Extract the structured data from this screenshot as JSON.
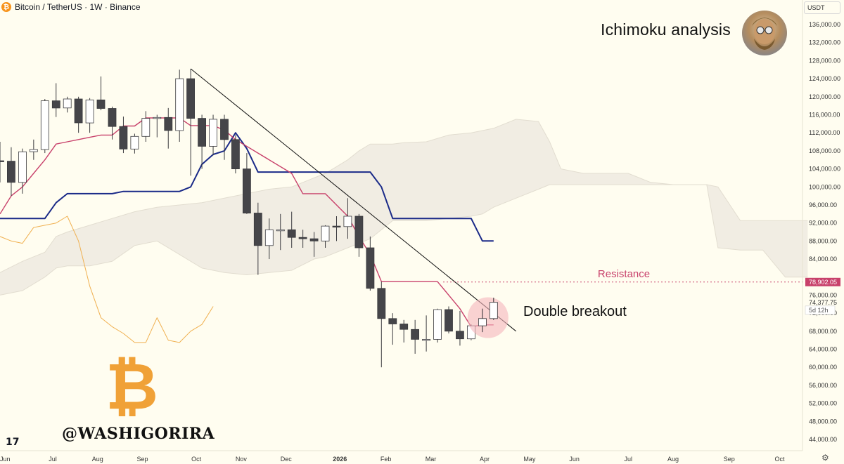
{
  "header": {
    "symbol_icon": "₿",
    "symbol": "Bitcoin / TetherUS · 1W · Binance",
    "currency": "USDT"
  },
  "headline": "Ichimoku analysis",
  "watermark": "@WASHIGORIRA",
  "logo_glyph": "₿",
  "tv_logo": "17",
  "gear_icon": "⚙",
  "colors": {
    "background": "#fffdf0",
    "candle_down": "#454549",
    "candle_up": "#ffffff",
    "tenkan": "#c8416b",
    "kijun": "#1a2a88",
    "chikou": "#f0b050",
    "cloud": "#eeeae0",
    "resistance": "#c8416b",
    "trendline": "#111111",
    "highlight": "#f5b5bc",
    "bitcoin_logo": "#f0a137"
  },
  "chart_data": {
    "type": "candlestick",
    "title": "Bitcoin / TetherUS · 1W · Binance",
    "ylim": [
      42000,
      138000
    ],
    "y_ticks": [
      44000,
      48000,
      52000,
      56000,
      60000,
      64000,
      68000,
      72000,
      76000,
      80000,
      84000,
      88000,
      92000,
      96000,
      100000,
      104000,
      108000,
      112000,
      116000,
      120000,
      124000,
      128000,
      132000,
      136000
    ],
    "y_tick_labels": [
      "44,000.00",
      "48,000.00",
      "52,000.00",
      "56,000.00",
      "60,000.00",
      "64,000.00",
      "68,000.00",
      "72,000.00",
      "76,000.00",
      "80,000.00",
      "84,000.00",
      "88,000.00",
      "92,000.00",
      "96,000.00",
      "100,000.00",
      "104,000.00",
      "108,000.00",
      "112,000.00",
      "116,000.00",
      "120,000.00",
      "124,000.00",
      "128,000.00",
      "132,000.00",
      "136,000.00"
    ],
    "x_ticks": [
      {
        "label": "Jun",
        "week": 0
      },
      {
        "label": "Jul",
        "week": 4.7
      },
      {
        "label": "Aug",
        "week": 8.7
      },
      {
        "label": "Sep",
        "week": 12.7
      },
      {
        "label": "Oct",
        "week": 17.5
      },
      {
        "label": "Nov",
        "week": 21.5
      },
      {
        "label": "Dec",
        "week": 25.5
      },
      {
        "label": "2026",
        "week": 30.3
      },
      {
        "label": "Feb",
        "week": 34.4
      },
      {
        "label": "Mar",
        "week": 38.4
      },
      {
        "label": "Apr",
        "week": 43.2
      },
      {
        "label": "May",
        "week": 47.2
      },
      {
        "label": "Jun",
        "week": 51.2
      },
      {
        "label": "Jul",
        "week": 56
      },
      {
        "label": "Aug",
        "week": 60
      },
      {
        "label": "Sep",
        "week": 65
      },
      {
        "label": "Oct",
        "week": 69.5
      }
    ],
    "candles": [
      {
        "week": 0,
        "o": 105800,
        "h": 110000,
        "l": 101000,
        "c": 105700
      },
      {
        "week": 1,
        "o": 105700,
        "h": 108800,
        "l": 98000,
        "c": 101000
      },
      {
        "week": 2,
        "o": 101000,
        "h": 108500,
        "l": 98500,
        "c": 107800
      },
      {
        "week": 3,
        "o": 107800,
        "h": 110500,
        "l": 106000,
        "c": 108300
      },
      {
        "week": 4,
        "o": 108300,
        "h": 119500,
        "l": 107500,
        "c": 119100
      },
      {
        "week": 5,
        "o": 119100,
        "h": 123000,
        "l": 115500,
        "c": 117500
      },
      {
        "week": 6,
        "o": 117500,
        "h": 120000,
        "l": 116500,
        "c": 119500
      },
      {
        "week": 7,
        "o": 119500,
        "h": 120000,
        "l": 112000,
        "c": 114200
      },
      {
        "week": 8,
        "o": 114200,
        "h": 119700,
        "l": 112000,
        "c": 119300
      },
      {
        "week": 9,
        "o": 119300,
        "h": 124500,
        "l": 117000,
        "c": 117400
      },
      {
        "week": 10,
        "o": 117400,
        "h": 117800,
        "l": 110500,
        "c": 113400
      },
      {
        "week": 11,
        "o": 113400,
        "h": 115600,
        "l": 107500,
        "c": 108400
      },
      {
        "week": 12,
        "o": 108400,
        "h": 111800,
        "l": 107400,
        "c": 111200
      },
      {
        "week": 13,
        "o": 111200,
        "h": 116800,
        "l": 110000,
        "c": 115200
      },
      {
        "week": 14,
        "o": 115200,
        "h": 116000,
        "l": 111000,
        "c": 115400
      },
      {
        "week": 15,
        "o": 115400,
        "h": 117500,
        "l": 108500,
        "c": 112500
      },
      {
        "week": 16,
        "o": 112500,
        "h": 126000,
        "l": 110000,
        "c": 124000
      },
      {
        "week": 17,
        "o": 124000,
        "h": 126200,
        "l": 102500,
        "c": 115200
      },
      {
        "week": 18,
        "o": 115200,
        "h": 116000,
        "l": 104000,
        "c": 109000
      },
      {
        "week": 19,
        "o": 109000,
        "h": 116000,
        "l": 107000,
        "c": 115000
      },
      {
        "week": 20,
        "o": 115000,
        "h": 116000,
        "l": 106000,
        "c": 110500
      },
      {
        "week": 21,
        "o": 110500,
        "h": 111500,
        "l": 103000,
        "c": 104000
      },
      {
        "week": 22,
        "o": 104000,
        "h": 107500,
        "l": 94000,
        "c": 94200
      },
      {
        "week": 23,
        "o": 94200,
        "h": 96500,
        "l": 80500,
        "c": 87000
      },
      {
        "week": 24,
        "o": 87000,
        "h": 93000,
        "l": 84000,
        "c": 90500
      },
      {
        "week": 25,
        "o": 90500,
        "h": 94000,
        "l": 86000,
        "c": 90500
      },
      {
        "week": 26,
        "o": 90500,
        "h": 94500,
        "l": 86500,
        "c": 88800
      },
      {
        "week": 27,
        "o": 88800,
        "h": 90500,
        "l": 86500,
        "c": 88500
      },
      {
        "week": 28,
        "o": 88500,
        "h": 90000,
        "l": 84500,
        "c": 88000
      },
      {
        "week": 29,
        "o": 88000,
        "h": 91500,
        "l": 86500,
        "c": 91300
      },
      {
        "week": 30,
        "o": 91300,
        "h": 93500,
        "l": 88000,
        "c": 91200
      },
      {
        "week": 31,
        "o": 91200,
        "h": 97500,
        "l": 88500,
        "c": 93500
      },
      {
        "week": 32,
        "o": 93500,
        "h": 94000,
        "l": 84500,
        "c": 86500
      },
      {
        "week": 33,
        "o": 86500,
        "h": 89000,
        "l": 77000,
        "c": 77500
      },
      {
        "week": 34,
        "o": 77500,
        "h": 79000,
        "l": 60000,
        "c": 70800
      },
      {
        "week": 35,
        "o": 70800,
        "h": 72000,
        "l": 65000,
        "c": 69600
      },
      {
        "week": 36,
        "o": 69600,
        "h": 70500,
        "l": 65500,
        "c": 68400
      },
      {
        "week": 37,
        "o": 68400,
        "h": 70500,
        "l": 63000,
        "c": 66200
      },
      {
        "week": 38,
        "o": 66200,
        "h": 71500,
        "l": 63500,
        "c": 66200
      },
      {
        "week": 39,
        "o": 66200,
        "h": 73000,
        "l": 65500,
        "c": 72800
      },
      {
        "week": 40,
        "o": 72800,
        "h": 73500,
        "l": 67500,
        "c": 68000
      },
      {
        "week": 41,
        "o": 68000,
        "h": 72500,
        "l": 64800,
        "c": 66300
      },
      {
        "week": 42,
        "o": 66300,
        "h": 69500,
        "l": 66000,
        "c": 69200
      },
      {
        "week": 43,
        "o": 69200,
        "h": 73000,
        "l": 67800,
        "c": 70800
      },
      {
        "week": 44,
        "o": 70800,
        "h": 75400,
        "l": 70500,
        "c": 74400
      }
    ],
    "tenkan": {
      "name": "Conversion line",
      "points": [
        [
          0,
          94000
        ],
        [
          1,
          98000
        ],
        [
          2,
          100000
        ],
        [
          3,
          103000
        ],
        [
          4,
          106000
        ],
        [
          5,
          109500
        ],
        [
          6,
          110000
        ],
        [
          7,
          110500
        ],
        [
          8,
          111000
        ],
        [
          9,
          111500
        ],
        [
          10,
          111500
        ],
        [
          11,
          113500
        ],
        [
          12,
          113500
        ],
        [
          13,
          115300
        ],
        [
          14,
          115300
        ],
        [
          15,
          115300
        ],
        [
          16,
          115300
        ],
        [
          17,
          113600
        ],
        [
          18,
          113600
        ],
        [
          19,
          113600
        ],
        [
          20,
          112600
        ],
        [
          21,
          110500
        ],
        [
          26,
          103000
        ],
        [
          27,
          98500
        ],
        [
          28,
          98500
        ],
        [
          29,
          98500
        ],
        [
          30,
          96000
        ],
        [
          31,
          93500
        ],
        [
          32,
          89000
        ],
        [
          33,
          85000
        ],
        [
          34,
          79000
        ],
        [
          35,
          79000
        ],
        [
          36,
          79000
        ],
        [
          37,
          79000
        ],
        [
          38,
          79000
        ],
        [
          39,
          79000
        ],
        [
          40,
          76000
        ],
        [
          41,
          73000
        ],
        [
          42,
          69000
        ],
        [
          43,
          69400
        ],
        [
          44,
          69400
        ]
      ]
    },
    "kijun": {
      "name": "Base line",
      "points": [
        [
          0,
          93000
        ],
        [
          4,
          93000
        ],
        [
          5,
          96500
        ],
        [
          6,
          98500
        ],
        [
          10,
          98500
        ],
        [
          11,
          99000
        ],
        [
          16,
          99000
        ],
        [
          17,
          100000
        ],
        [
          18,
          105000
        ],
        [
          19,
          107200
        ],
        [
          20,
          108000
        ],
        [
          21,
          112000
        ],
        [
          22,
          108500
        ],
        [
          23,
          103300
        ],
        [
          33,
          103300
        ],
        [
          34,
          100000
        ],
        [
          35,
          93000
        ],
        [
          42,
          93000
        ],
        [
          43,
          88000
        ],
        [
          44,
          88000
        ]
      ]
    },
    "chikou": {
      "name": "Lagging span",
      "points": [
        [
          0,
          89000
        ],
        [
          1,
          88000
        ],
        [
          2,
          87500
        ],
        [
          3,
          91000
        ],
        [
          4,
          91500
        ],
        [
          5,
          92000
        ],
        [
          6,
          93500
        ],
        [
          7,
          88000
        ],
        [
          8,
          78000
        ],
        [
          9,
          71000
        ],
        [
          10,
          69000
        ],
        [
          11,
          67500
        ],
        [
          12,
          65500
        ],
        [
          13,
          65500
        ],
        [
          14,
          71000
        ],
        [
          15,
          66000
        ],
        [
          16,
          65500
        ],
        [
          17,
          68000
        ],
        [
          18,
          69500
        ],
        [
          19,
          73500
        ]
      ]
    },
    "cloud": {
      "name": "Ichimoku cloud",
      "weeks": [
        0,
        2,
        4,
        5,
        6,
        8,
        10,
        12,
        14,
        16,
        18,
        20,
        22,
        24,
        26,
        28,
        29,
        30,
        31,
        32,
        33,
        35,
        36,
        38,
        40,
        42,
        43,
        44,
        46,
        48,
        49,
        50,
        52,
        54,
        56,
        57,
        58,
        60,
        62,
        63,
        64,
        66,
        68,
        70,
        72
      ],
      "span_a": [
        81000,
        83500,
        85500,
        89000,
        90000,
        91500,
        93000,
        94500,
        95500,
        96000,
        96500,
        97500,
        98500,
        99500,
        100000,
        102000,
        103000,
        104500,
        106000,
        108000,
        109500,
        109500,
        109800,
        110000,
        111500,
        112000,
        112500,
        113000,
        115000,
        114500,
        110000,
        104000,
        103000,
        103000,
        103000,
        102000,
        101000,
        100500,
        100500,
        100500,
        100000,
        92500,
        92500,
        92500,
        92500
      ],
      "span_b": [
        76000,
        77000,
        80000,
        82000,
        82500,
        82500,
        83500,
        87000,
        88000,
        85000,
        82000,
        81000,
        80500,
        81000,
        81500,
        84000,
        84500,
        85500,
        86500,
        87500,
        88500,
        92500,
        92500,
        92500,
        93000,
        93500,
        94000,
        95500,
        97500,
        99500,
        100500,
        100500,
        100500,
        100500,
        100500,
        100500,
        100500,
        100500,
        100500,
        100500,
        86500,
        86000,
        86000,
        80000,
        80000
      ]
    },
    "resistance": {
      "label": "Resistance",
      "price": 78902.05,
      "price_label": "78,902.05"
    },
    "current_price_label": "74,377.75",
    "countdown_label": "5d 12h",
    "trendline": {
      "from": [
        17,
        126200
      ],
      "to": [
        46,
        68000
      ]
    },
    "annotation": {
      "label": "Double breakout",
      "week": 43.5,
      "price": 71000
    }
  }
}
